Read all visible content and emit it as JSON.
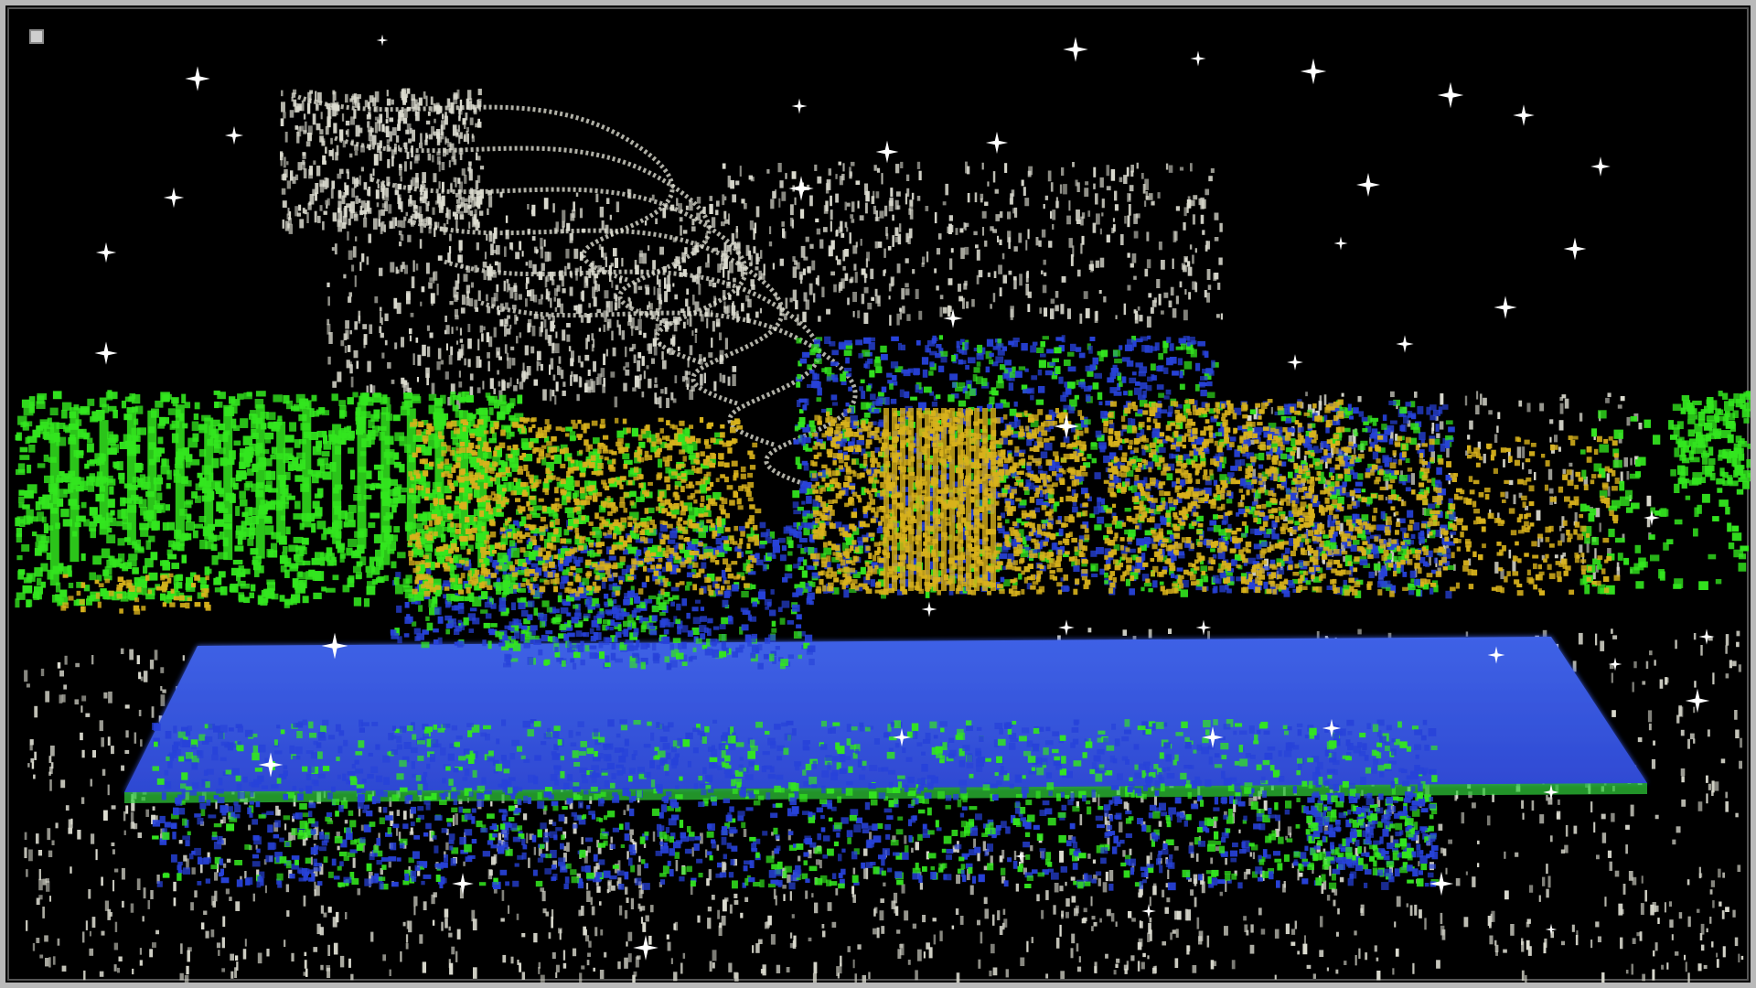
{
  "window": {
    "title": ""
  },
  "colors": {
    "background": "#000000",
    "frame": "#b9b9b9",
    "point_white": "#dcdcd0",
    "point_green": "#33e61f",
    "point_yellow": "#d8b21c",
    "point_blue": "#2742d9",
    "plane_blue": "#3a5ae0",
    "star": "#ffffff"
  },
  "icons": {
    "corner": "square-button-icon",
    "star": "sparkle-icon"
  }
}
